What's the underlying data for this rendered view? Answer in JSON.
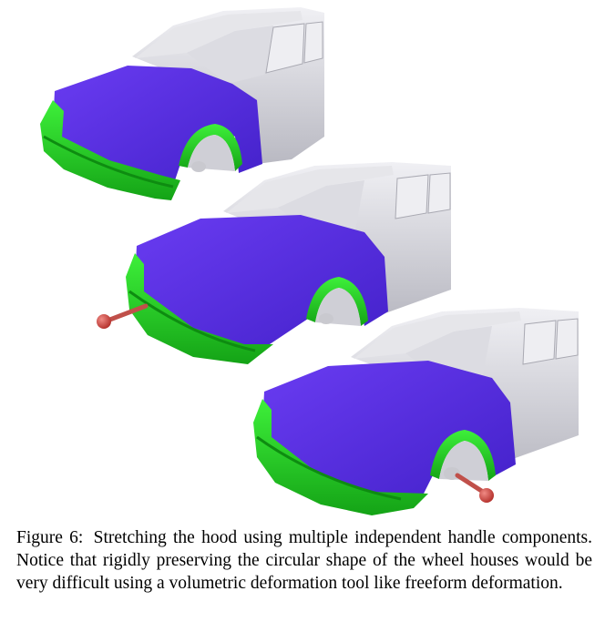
{
  "figure": {
    "colors": {
      "body": "#d8d8de",
      "body_shade": "#b6b6be",
      "window": "#eeeef2",
      "hood": "#5a2ee6",
      "hood_dark": "#3d1bb8",
      "bumper": "#2ee82a",
      "bumper_dark": "#13a814",
      "handle": "#d9453f",
      "handle_stick": "#c0504a"
    },
    "panels": [
      {
        "name": "original",
        "handles": []
      },
      {
        "name": "stretched-front-handle",
        "handles": [
          "front"
        ]
      },
      {
        "name": "stretched-wheel-handle",
        "handles": [
          "wheel"
        ]
      }
    ]
  },
  "caption": {
    "label": "Figure 6:",
    "text": "Stretching the hood using multiple independent handle components. Notice that rigidly preserving the circular shape of the wheel houses would be very difficult using a volumetric deformation tool like freeform deformation."
  }
}
